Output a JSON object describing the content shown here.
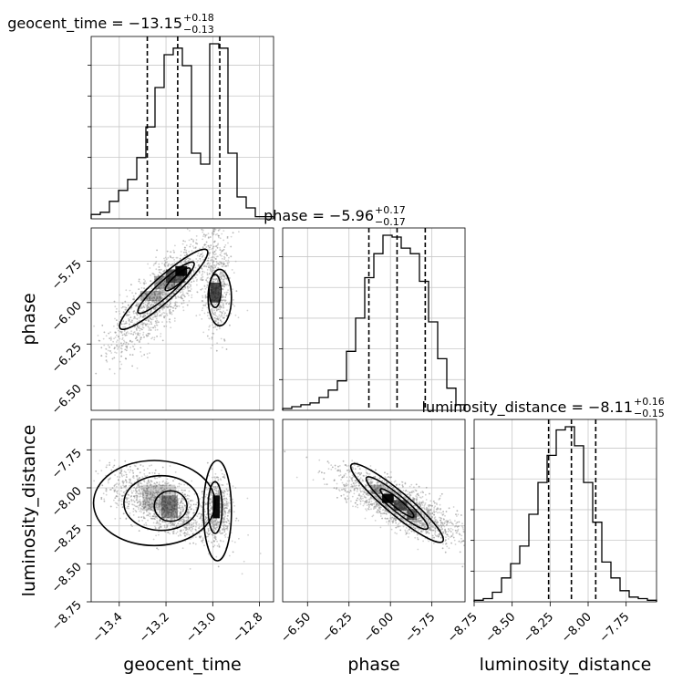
{
  "chart_data": {
    "type": "corner",
    "parameters": [
      "geocent_time",
      "phase",
      "luminosity_distance"
    ],
    "axis_labels": [
      "geocent_time",
      "phase",
      "luminosity_distance"
    ],
    "ranges": {
      "geocent_time": [
        -13.52,
        -12.74
      ],
      "phase": [
        -6.65,
        -5.55
      ],
      "luminosity_distance": [
        -8.75,
        -7.55
      ]
    },
    "titles": [
      {
        "base": "geocent_time = −13.15",
        "sup": "+0.18",
        "sub": "−0.13"
      },
      {
        "base": "phase = −5.96",
        "sup": "+0.17",
        "sub": "−0.17"
      },
      {
        "base": "luminosity_distance = −8.11",
        "sup": "+0.16",
        "sub": "−0.15"
      }
    ],
    "quantiles": {
      "geocent_time": [
        -13.28,
        -13.15,
        -12.97
      ],
      "phase": [
        -6.13,
        -5.96,
        -5.79
      ],
      "luminosity_distance": [
        -8.26,
        -8.11,
        -7.95
      ]
    },
    "histograms": {
      "geocent_time": {
        "edges": [
          -13.52,
          -13.481,
          -13.442,
          -13.403,
          -13.364,
          -13.325,
          -13.286,
          -13.247,
          -13.208,
          -13.169,
          -13.13,
          -13.091,
          -13.052,
          -13.013,
          -12.974,
          -12.935,
          -12.896,
          -12.857,
          -12.818,
          -12.779,
          -12.74
        ],
        "counts": [
          2,
          3,
          8,
          13,
          18,
          28,
          42,
          60,
          75,
          78,
          70,
          30,
          25,
          80,
          78,
          30,
          10,
          5,
          1,
          1
        ]
      },
      "phase": {
        "edges": [
          -6.65,
          -6.595,
          -6.54,
          -6.485,
          -6.43,
          -6.375,
          -6.32,
          -6.265,
          -6.21,
          -6.155,
          -6.1,
          -6.045,
          -5.99,
          -5.935,
          -5.88,
          -5.825,
          -5.77,
          -5.715,
          -5.66,
          -5.605,
          -5.55
        ],
        "counts": [
          1,
          2,
          3,
          4,
          7,
          11,
          16,
          32,
          50,
          72,
          85,
          95,
          94,
          88,
          85,
          70,
          48,
          28,
          12,
          3
        ]
      },
      "luminosity_distance": {
        "edges": [
          -8.75,
          -8.69,
          -8.63,
          -8.57,
          -8.51,
          -8.45,
          -8.39,
          -8.33,
          -8.27,
          -8.21,
          -8.15,
          -8.09,
          -8.03,
          -7.97,
          -7.91,
          -7.85,
          -7.79,
          -7.73,
          -7.67,
          -7.61,
          -7.55
        ],
        "counts": [
          1,
          2,
          6,
          15,
          24,
          35,
          55,
          75,
          92,
          108,
          110,
          98,
          75,
          50,
          25,
          15,
          7,
          3,
          2,
          1
        ]
      }
    },
    "ticks": {
      "geocent_time": {
        "values": [
          -13.4,
          -13.2,
          -13.0,
          -12.8
        ],
        "labels": [
          "−13.4",
          "−13.2",
          "−13.0",
          "−12.8"
        ]
      },
      "phase": {
        "values": [
          -6.5,
          -6.25,
          -6.0,
          -5.75
        ],
        "labels": [
          "−6.50",
          "−6.25",
          "−6.00",
          "−5.75"
        ]
      },
      "luminosity_distance": {
        "values": [
          -8.75,
          -8.5,
          -8.25,
          -8.0,
          -7.75
        ],
        "labels": [
          "−8.75",
          "−8.50",
          "−8.25",
          "−8.00",
          "−7.75"
        ]
      }
    },
    "grid": true,
    "scatter_color": "#9a9a9a",
    "contour_color": "#000000",
    "density_color": "#000000"
  }
}
